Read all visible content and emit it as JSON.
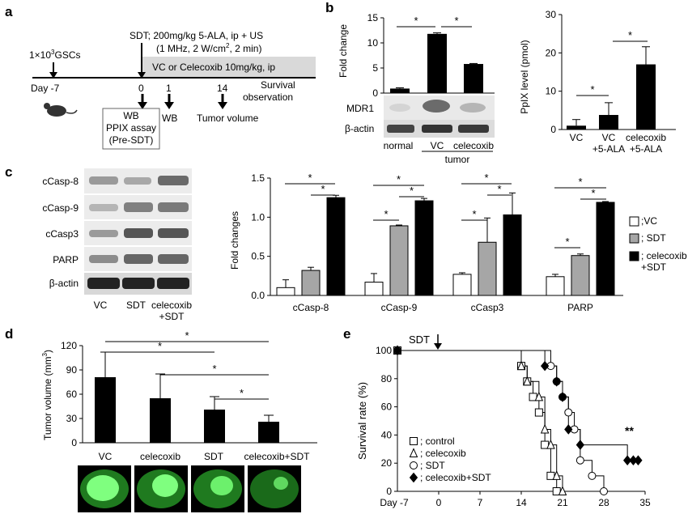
{
  "panel_labels": {
    "a": "a",
    "b": "b",
    "c": "c",
    "d": "d",
    "e": "e"
  },
  "panel_a": {
    "cells": "1×10",
    "cells_sup": "3",
    "cells_rest": "GSCs",
    "sdt_line1": "SDT; 200mg/kg 5-ALA, ip + US",
    "sdt_line2a": "(1 MHz, 2 W/cm",
    "sdt_line2_sup": "2",
    "sdt_line2b": ", 2 min)",
    "treatment": "VC or Celecoxib 10mg/kg, ip",
    "day_label": "Day -7",
    "days": [
      "0",
      "1",
      "14"
    ],
    "survival_line1": "Survival",
    "survival_line2": "observation",
    "wb_box": [
      "WB",
      "PPIX  assay",
      "(Pre-SDT)"
    ],
    "wb": "WB",
    "tumor_volume": "Tumor volume"
  },
  "panel_b": {
    "chart_data": [
      {
        "type": "bar",
        "ylabel": "Fold change",
        "categories": [
          "normal",
          "VC",
          "celecoxib"
        ],
        "values": [
          0.9,
          11.8,
          5.8
        ],
        "errors": [
          0.15,
          0.2,
          0.1
        ],
        "ylim": [
          0,
          15
        ],
        "yticks": [
          0,
          5,
          10,
          15
        ],
        "group_label": "tumor",
        "blot_labels": [
          "MDR1",
          "β-actin"
        ],
        "significance": "*"
      },
      {
        "type": "bar",
        "ylabel": "PpIX level (pmol)",
        "categories": [
          "VC",
          "VC\n+5-ALA",
          "celecoxib\n+5-ALA"
        ],
        "values": [
          1.0,
          3.8,
          17.0
        ],
        "errors": [
          1.6,
          3.2,
          4.6
        ],
        "ylim": [
          0,
          30
        ],
        "yticks": [
          0,
          10,
          20,
          30
        ],
        "significance": "*"
      }
    ]
  },
  "panel_c": {
    "blot_labels": [
      "cCasp-8",
      "cCasp-9",
      "cCasp3",
      "PARP",
      "β-actin"
    ],
    "lanes": [
      "VC",
      "SDT",
      "celecoxib\n+SDT"
    ],
    "chart_data": {
      "type": "bar",
      "ylabel": "Fold changes",
      "categories": [
        "cCasp-8",
        "cCasp-9",
        "cCasp3",
        "PARP"
      ],
      "series": [
        {
          "name": ";VC",
          "values": [
            0.1,
            0.17,
            0.27,
            0.24
          ],
          "errors": [
            0.1,
            0.11,
            0.02,
            0.03
          ],
          "color": "#ffffff"
        },
        {
          "name": "; SDT",
          "values": [
            0.32,
            0.89,
            0.68,
            0.51
          ],
          "errors": [
            0.04,
            0.01,
            0.31,
            0.02
          ],
          "color": "#a6a6a6"
        },
        {
          "name": "; celecoxib\n+SDT",
          "values": [
            1.25,
            1.21,
            1.03,
            1.19
          ],
          "errors": [
            0.03,
            0.03,
            0.28,
            0.01
          ],
          "color": "#000000"
        }
      ],
      "ylim": [
        0,
        1.5
      ],
      "yticks": [
        "0.0",
        "0.5",
        "1.0",
        "1.5"
      ],
      "significance": "*"
    }
  },
  "panel_d": {
    "chart_data": {
      "type": "bar",
      "ylabel": "Tumor volume (mm",
      "ylabel_sup": "3",
      "ylabel_end": ")",
      "categories": [
        "VC",
        "celecoxib",
        "SDT",
        "celecoxib+SDT"
      ],
      "values": [
        81,
        55,
        41,
        26
      ],
      "errors": [
        31,
        30,
        16,
        8
      ],
      "ylim": [
        0,
        120
      ],
      "yticks": [
        0,
        30,
        60,
        90,
        120
      ],
      "significance": "*"
    }
  },
  "panel_e": {
    "chart_data": {
      "type": "line",
      "ylabel": "Survival rate (%)",
      "xlabel_start": "Day -7",
      "xticks": [
        0,
        7,
        14,
        21,
        28,
        35
      ],
      "yticks": [
        0,
        20,
        40,
        60,
        80,
        100
      ],
      "xlim": [
        -7,
        35
      ],
      "ylim": [
        0,
        100
      ],
      "annotation": "SDT",
      "significance": "**",
      "series": [
        {
          "name": "; control",
          "marker": "square",
          "x": [
            -7,
            14,
            15,
            16,
            17,
            18,
            19,
            20
          ],
          "y": [
            100,
            89,
            78,
            67,
            56,
            33,
            11,
            0
          ]
        },
        {
          "name": "; celecoxib",
          "marker": "triangle",
          "x": [
            -7,
            14,
            15,
            17,
            18,
            19,
            20,
            21
          ],
          "y": [
            100,
            89,
            78,
            67,
            44,
            33,
            11,
            0
          ]
        },
        {
          "name": "; SDT",
          "marker": "circle",
          "x": [
            -7,
            19,
            20,
            21,
            22,
            23,
            24,
            26,
            28
          ],
          "y": [
            100,
            89,
            78,
            67,
            56,
            44,
            22,
            11,
            0
          ]
        },
        {
          "name": "; celecoxib+SDT",
          "marker": "diamond",
          "x": [
            -7,
            18,
            20,
            21,
            22,
            24,
            32,
            33
          ],
          "y": [
            100,
            89,
            78,
            67,
            44,
            33,
            22,
            22
          ]
        }
      ]
    }
  }
}
